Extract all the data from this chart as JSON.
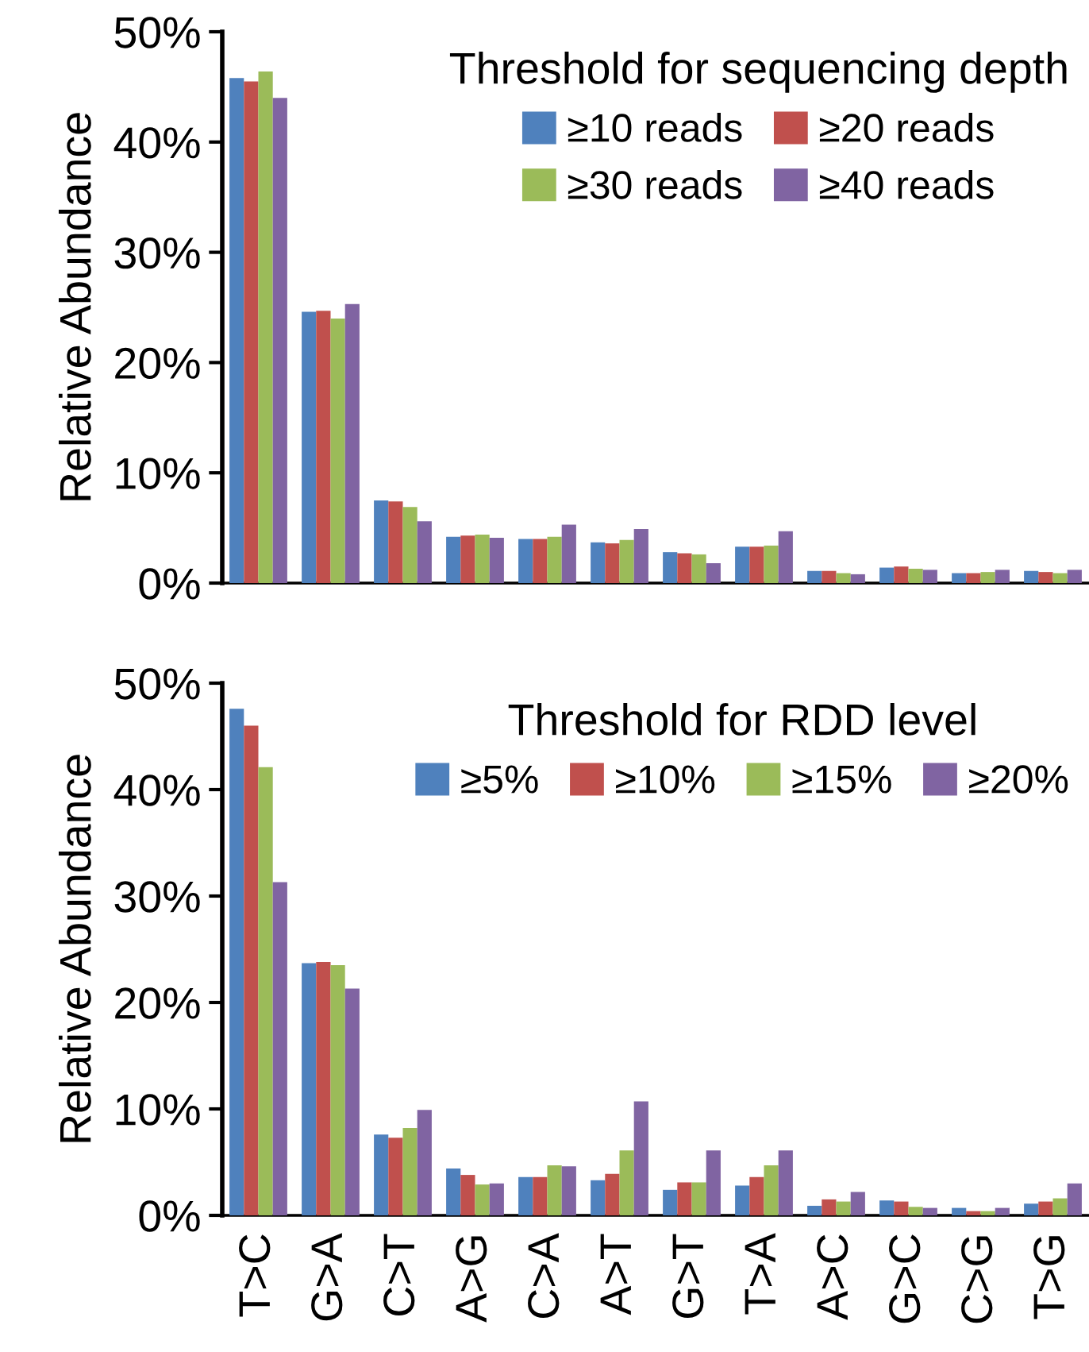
{
  "chart_data": [
    {
      "type": "bar",
      "ylabel": "Relative Abundance",
      "legend_title": "Threshold for sequencing depth",
      "legend": "top right",
      "tick_labels": "y",
      "categories": [
        null,
        null,
        null,
        null,
        null,
        null,
        null,
        null,
        null,
        null,
        null,
        null
      ],
      "ylim": [
        0,
        50
      ],
      "yticks": [
        {
          "value": 0,
          "label": "0%"
        },
        {
          "value": 10,
          "label": "10%"
        },
        {
          "value": 20,
          "label": "20%"
        },
        {
          "value": 30,
          "label": "30%"
        },
        {
          "value": 40,
          "label": "40%"
        },
        {
          "value": 50,
          "label": "50%"
        }
      ],
      "grid": false,
      "series": [
        {
          "name": "≥10 reads",
          "color": "#4f81bd",
          "values": [
            45.8,
            24.6,
            7.5,
            4.2,
            4.0,
            3.7,
            2.8,
            3.3,
            1.1,
            1.4,
            0.9,
            1.1
          ]
        },
        {
          "name": "≥20 reads",
          "color": "#c0504d",
          "values": [
            45.5,
            24.7,
            7.4,
            4.3,
            4.0,
            3.6,
            2.7,
            3.3,
            1.1,
            1.5,
            0.9,
            1.0
          ]
        },
        {
          "name": "≥30 reads",
          "color": "#9bbb59",
          "values": [
            46.4,
            24.0,
            6.9,
            4.4,
            4.2,
            3.9,
            2.6,
            3.4,
            0.9,
            1.3,
            1.0,
            0.9
          ]
        },
        {
          "name": "≥40 reads",
          "color": "#8064a2",
          "values": [
            44.0,
            25.3,
            5.6,
            4.1,
            5.3,
            4.9,
            1.8,
            4.7,
            0.8,
            1.2,
            1.2,
            1.2
          ]
        }
      ]
    },
    {
      "type": "bar",
      "ylabel": "Relative Abundance",
      "legend_title": "Threshold for RDD level",
      "legend": "top right",
      "categories": [
        "T>C",
        "G>A",
        "C>T",
        "A>G",
        "C>A",
        "A>T",
        "G>T",
        "T>A",
        "A>C",
        "G>C",
        "C>G",
        "T>G"
      ],
      "ylim": [
        0,
        50
      ],
      "yticks": [
        {
          "value": 0,
          "label": "0%"
        },
        {
          "value": 10,
          "label": "10%"
        },
        {
          "value": 20,
          "label": "20%"
        },
        {
          "value": 30,
          "label": "30%"
        },
        {
          "value": 40,
          "label": "40%"
        },
        {
          "value": 50,
          "label": "50%"
        }
      ],
      "grid": false,
      "series": [
        {
          "name": "≥5%",
          "color": "#4f81bd",
          "values": [
            47.6,
            23.7,
            7.6,
            4.4,
            3.6,
            3.3,
            2.4,
            2.8,
            0.9,
            1.4,
            0.7,
            1.1
          ]
        },
        {
          "name": "≥10%",
          "color": "#c0504d",
          "values": [
            46.0,
            23.8,
            7.3,
            3.8,
            3.6,
            3.9,
            3.1,
            3.6,
            1.5,
            1.3,
            0.4,
            1.3
          ]
        },
        {
          "name": "≥15%",
          "color": "#9bbb59",
          "values": [
            42.1,
            23.5,
            8.2,
            2.9,
            4.7,
            6.1,
            3.1,
            4.7,
            1.3,
            0.8,
            0.4,
            1.6
          ]
        },
        {
          "name": "≥20%",
          "color": "#8064a2",
          "values": [
            31.3,
            21.3,
            9.9,
            3.0,
            4.6,
            10.7,
            6.1,
            6.1,
            2.2,
            0.7,
            0.7,
            3.0
          ]
        }
      ]
    }
  ]
}
